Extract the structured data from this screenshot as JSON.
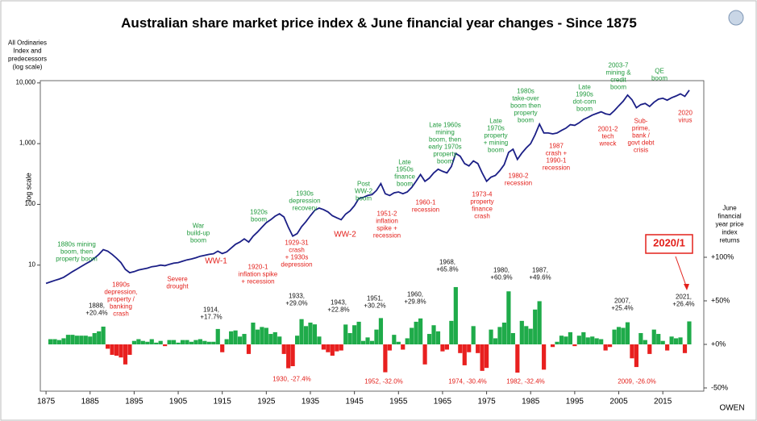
{
  "title": "Australian share market price index & June financial year changes - Since 1875",
  "footer": "OWEN",
  "callout": "2020/1",
  "chart_data": [
    {
      "type": "line",
      "log_scale": true,
      "color": "#1b1f86",
      "ylabel": [
        "All Ordinaries",
        "Index and",
        "predecessors",
        "(log scale)"
      ],
      "ylabel_side": "log scale",
      "xlim": [
        1873.7,
        2024.3
      ],
      "xticks": [
        1875,
        1885,
        1895,
        1905,
        1915,
        1925,
        1935,
        1945,
        1955,
        1965,
        1975,
        1985,
        1995,
        2005,
        2015
      ],
      "ylim": [
        0.084,
        10900
      ],
      "yticks": [
        10,
        100,
        {
          "value": 1000,
          "label": "1,000"
        },
        {
          "value": 10000,
          "label": "10,000"
        }
      ],
      "x": [
        1875,
        1876,
        1877,
        1878,
        1879,
        1880,
        1881,
        1882,
        1883,
        1884,
        1885,
        1886,
        1887,
        1888,
        1889,
        1890,
        1891,
        1892,
        1893,
        1894,
        1895,
        1896,
        1897,
        1898,
        1899,
        1900,
        1901,
        1902,
        1903,
        1904,
        1905,
        1906,
        1907,
        1908,
        1909,
        1910,
        1911,
        1912,
        1913,
        1914,
        1915,
        1916,
        1917,
        1918,
        1919,
        1920,
        1921,
        1922,
        1923,
        1924,
        1925,
        1926,
        1927,
        1928,
        1929,
        1930,
        1931,
        1932,
        1933,
        1934,
        1935,
        1936,
        1937,
        1938,
        1939,
        1940,
        1941,
        1942,
        1943,
        1944,
        1945,
        1946,
        1947,
        1948,
        1949,
        1950,
        1951,
        1952,
        1953,
        1954,
        1955,
        1956,
        1957,
        1958,
        1959,
        1960,
        1961,
        1962,
        1963,
        1964,
        1965,
        1966,
        1967,
        1968,
        1969,
        1970,
        1971,
        1972,
        1973,
        1974,
        1975,
        1976,
        1977,
        1978,
        1979,
        1980,
        1981,
        1982,
        1983,
        1984,
        1985,
        1986,
        1987,
        1988,
        1989,
        1990,
        1991,
        1992,
        1993,
        1994,
        1995,
        1996,
        1997,
        1998,
        1999,
        2000,
        2001,
        2002,
        2003,
        2004,
        2005,
        2006,
        2007,
        2008,
        2009,
        2010,
        2011,
        2012,
        2013,
        2014,
        2015,
        2016,
        2017,
        2018,
        2019,
        2020,
        2021
      ],
      "values": [
        5,
        5.3,
        5.6,
        5.9,
        6.3,
        7,
        7.8,
        8.6,
        9.5,
        10.5,
        11.5,
        13,
        15,
        18,
        17,
        15,
        13,
        11,
        8.5,
        7.5,
        7.8,
        8.3,
        8.6,
        8.9,
        9.4,
        9.6,
        10,
        9.8,
        10.3,
        10.8,
        11,
        11.6,
        12.2,
        12.6,
        13.2,
        14,
        14.5,
        15,
        15.4,
        17,
        15.5,
        16.5,
        19,
        22,
        24,
        27,
        24,
        30,
        35,
        42,
        50,
        56,
        64,
        70,
        62,
        42,
        30,
        33,
        43,
        52,
        65,
        80,
        87,
        82,
        75,
        65,
        60,
        56,
        69,
        78,
        95,
        125,
        130,
        140,
        145,
        170,
        220,
        150,
        140,
        155,
        160,
        150,
        160,
        190,
        240,
        310,
        240,
        270,
        330,
        380,
        350,
        330,
        420,
        690,
        620,
        470,
        430,
        520,
        470,
        330,
        240,
        280,
        300,
        360,
        450,
        720,
        810,
        550,
        700,
        850,
        1000,
        1400,
        2100,
        1500,
        1500,
        1450,
        1500,
        1650,
        1800,
        2050,
        2000,
        2200,
        2500,
        2700,
        2950,
        3150,
        3350,
        3100,
        3000,
        3500,
        4200,
        5000,
        6300,
        5300,
        3900,
        4400,
        4600,
        4100,
        4800,
        5400,
        5600,
        5200,
        5700,
        6100,
        6600,
        6000,
        7600
      ],
      "annotations": [
        {
          "text": [
            "1880s mining",
            "boom, then",
            "property boom"
          ],
          "color": "#1f9a3c"
        },
        {
          "text": [
            "War",
            "build-up",
            "boom"
          ],
          "color": "#1f9a3c"
        },
        {
          "text": [
            "1920s",
            "boom"
          ],
          "color": "#1f9a3c"
        },
        {
          "text": [
            "1930s",
            "depression",
            "recovery"
          ],
          "color": "#1f9a3c"
        },
        {
          "text": [
            "Post",
            "WW-2",
            "boom"
          ],
          "color": "#1f9a3c"
        },
        {
          "text": [
            "Late",
            "1950s",
            "finance",
            "boom"
          ],
          "color": "#1f9a3c"
        },
        {
          "text": [
            "Late 1960s",
            "mining",
            "boom, then",
            "early 1970s",
            "property",
            "boom"
          ],
          "color": "#1f9a3c"
        },
        {
          "text": [
            "Late",
            "1970s",
            "property",
            "+ mining",
            "boom"
          ],
          "color": "#1f9a3c"
        },
        {
          "text": [
            "1980s",
            "take-over",
            "boom then",
            "property",
            "boom"
          ],
          "color": "#1f9a3c"
        },
        {
          "text": [
            "Late",
            "1990s",
            "dot-com",
            "boom"
          ],
          "color": "#1f9a3c"
        },
        {
          "text": [
            "2003-7",
            "mining &",
            "credit",
            "boom"
          ],
          "color": "#1f9a3c"
        },
        {
          "text": [
            "QE",
            "boom"
          ],
          "color": "#1f9a3c"
        },
        {
          "text": [
            "WW-1"
          ],
          "color": "#e3201b"
        },
        {
          "text": [
            "1920-1",
            "inflation spike",
            "+ recession"
          ],
          "color": "#e3201b"
        },
        {
          "text": [
            "Severe",
            "drought"
          ],
          "color": "#e3201b"
        },
        {
          "text": [
            "1890s",
            "depression,",
            "property /",
            "banking",
            "crash"
          ],
          "color": "#e3201b"
        },
        {
          "text": [
            "1929-31",
            "crash",
            "+ 1930s",
            "depression"
          ],
          "color": "#e3201b"
        },
        {
          "text": [
            "WW-2"
          ],
          "color": "#e3201b"
        },
        {
          "text": [
            "1951-2",
            "inflation",
            "spike +",
            "recession"
          ],
          "color": "#e3201b"
        },
        {
          "text": [
            "1960-1",
            "recession"
          ],
          "color": "#e3201b"
        },
        {
          "text": [
            "1973-4",
            "property",
            "finance",
            "crash"
          ],
          "color": "#e3201b"
        },
        {
          "text": [
            "1980-2",
            "recession"
          ],
          "color": "#e3201b"
        },
        {
          "text": [
            "1987",
            "crash +",
            "1990-1",
            "recession"
          ],
          "color": "#e3201b"
        },
        {
          "text": [
            "2001-2",
            "tech",
            "wreck"
          ],
          "color": "#e3201b"
        },
        {
          "text": [
            "Sub-",
            "prime,",
            "bank /",
            "govt debt",
            "crisis"
          ],
          "color": "#e3201b"
        },
        {
          "text": [
            "2020",
            "virus"
          ],
          "color": "#e3201b"
        }
      ]
    },
    {
      "type": "bar",
      "positive_color": "#1fab4a",
      "negative_color": "#e8201f",
      "ylabel": [
        "June",
        "financial",
        "year price",
        "index",
        "returns"
      ],
      "xlim": [
        1873.7,
        2024.3
      ],
      "ylim": [
        -53.7,
        302.8
      ],
      "yticks": [
        {
          "value": 100,
          "label": "+100%"
        },
        {
          "value": 50,
          "label": "+50%"
        },
        {
          "value": 0,
          "label": "+0%"
        },
        {
          "value": -50,
          "label": "-50%"
        }
      ],
      "x": [
        1876,
        1877,
        1878,
        1879,
        1880,
        1881,
        1882,
        1883,
        1884,
        1885,
        1886,
        1887,
        1888,
        1889,
        1890,
        1891,
        1892,
        1893,
        1894,
        1895,
        1896,
        1897,
        1898,
        1899,
        1900,
        1901,
        1902,
        1903,
        1904,
        1905,
        1906,
        1907,
        1908,
        1909,
        1910,
        1911,
        1912,
        1913,
        1914,
        1915,
        1916,
        1917,
        1918,
        1919,
        1920,
        1921,
        1922,
        1923,
        1924,
        1925,
        1926,
        1927,
        1928,
        1929,
        1930,
        1931,
        1932,
        1933,
        1934,
        1935,
        1936,
        1937,
        1938,
        1939,
        1940,
        1941,
        1942,
        1943,
        1944,
        1945,
        1946,
        1947,
        1948,
        1949,
        1950,
        1951,
        1952,
        1953,
        1954,
        1955,
        1956,
        1957,
        1958,
        1959,
        1960,
        1961,
        1962,
        1963,
        1964,
        1965,
        1966,
        1967,
        1968,
        1969,
        1970,
        1971,
        1972,
        1973,
        1974,
        1975,
        1976,
        1977,
        1978,
        1979,
        1980,
        1981,
        1982,
        1983,
        1984,
        1985,
        1986,
        1987,
        1988,
        1989,
        1990,
        1991,
        1992,
        1993,
        1994,
        1995,
        1996,
        1997,
        1998,
        1999,
        2000,
        2001,
        2002,
        2003,
        2004,
        2005,
        2006,
        2007,
        2008,
        2009,
        2010,
        2011,
        2012,
        2013,
        2014,
        2015,
        2016,
        2017,
        2018,
        2019,
        2020,
        2021
      ],
      "values": [
        6,
        6,
        5,
        7,
        11,
        11,
        10,
        10,
        10,
        9,
        13,
        15,
        20.4,
        -5,
        -12,
        -13,
        -15,
        -23,
        -12,
        4,
        6,
        4,
        3,
        6,
        2,
        4,
        -2,
        5,
        5,
        2,
        5,
        5,
        3,
        5,
        6,
        4,
        3,
        3,
        17.7,
        -9,
        6,
        15,
        16,
        9,
        12,
        -11,
        25,
        17,
        20,
        19,
        12,
        14,
        9,
        -11,
        -27.4,
        -25,
        10,
        29,
        21,
        25,
        23,
        9,
        -6,
        -9,
        -13,
        -8,
        -7,
        22.8,
        13,
        22,
        26,
        4,
        8,
        4,
        17,
        30.2,
        -32,
        -7,
        11,
        3,
        -6,
        7,
        19,
        26,
        29.8,
        -23,
        12,
        22,
        15,
        -8,
        -6,
        27,
        65.8,
        -10,
        -24,
        -9,
        21,
        -10,
        -30.4,
        -27,
        17,
        7,
        20,
        25,
        60.9,
        13,
        -32.4,
        27,
        21,
        18,
        40,
        49.6,
        -29,
        0,
        -3,
        3,
        10,
        9,
        14,
        -2,
        10,
        14,
        8,
        9,
        7,
        6,
        -7,
        -3,
        17,
        20,
        19,
        25.4,
        -16,
        -26,
        13,
        5,
        -11,
        17,
        12,
        4,
        -7,
        9,
        7,
        8,
        -10,
        26.4
      ],
      "annotations": [
        {
          "text": [
            "1888,",
            "+20.4%"
          ]
        },
        {
          "text": [
            "1914,",
            "+17.7%"
          ]
        },
        {
          "text": [
            "1933,",
            "+29.0%"
          ]
        },
        {
          "text": [
            "1943,",
            "+22.8%"
          ]
        },
        {
          "text": [
            "1951,",
            "+30.2%"
          ]
        },
        {
          "text": [
            "1960,",
            "+29.8%"
          ]
        },
        {
          "text": [
            "1968,",
            "+65.8%"
          ]
        },
        {
          "text": [
            "1980,",
            "+60.9%"
          ]
        },
        {
          "text": [
            "1987,",
            "+49.6%"
          ]
        },
        {
          "text": [
            "2007,",
            "+25.4%"
          ]
        },
        {
          "text": [
            "2021,",
            "+26.4%"
          ]
        },
        {
          "text": [
            "1930, -27.4%"
          ],
          "color": "#e3201b"
        },
        {
          "text": [
            "1952, -32.0%"
          ],
          "color": "#e3201b"
        },
        {
          "text": [
            "1974, -30.4%"
          ],
          "color": "#e3201b"
        },
        {
          "text": [
            "1982, -32.4%"
          ],
          "color": "#e3201b"
        },
        {
          "text": [
            "2009, -26.0%"
          ],
          "color": "#e3201b"
        }
      ]
    }
  ]
}
